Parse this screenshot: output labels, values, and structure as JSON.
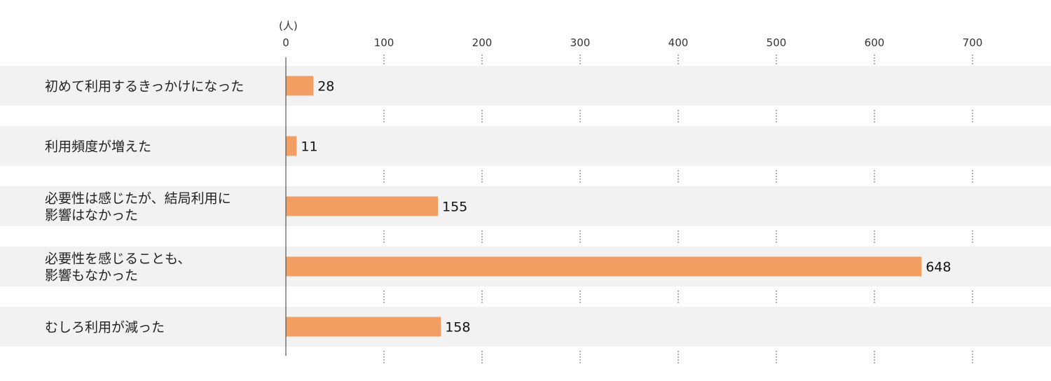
{
  "chart_data": {
    "type": "bar",
    "orientation": "horizontal",
    "unit": "(人)",
    "categories": [
      [
        "初めて利用するきっかけになった"
      ],
      [
        "利用頻度が増えた"
      ],
      [
        "必要性は感じたが、結局利用に",
        "影響はなかった"
      ],
      [
        "必要性を感じることも、",
        "影響もなかった"
      ],
      [
        "むしろ利用が減った"
      ]
    ],
    "values": [
      28,
      11,
      155,
      648,
      158
    ],
    "xlim": [
      0,
      700
    ],
    "ticks": [
      0,
      100,
      200,
      300,
      400,
      500,
      600,
      700
    ],
    "grid": "dotted",
    "colors": {
      "bar": "#f29d62",
      "row_band": "#f2f2f2",
      "axis": "#555555",
      "grid": "#555555"
    }
  }
}
